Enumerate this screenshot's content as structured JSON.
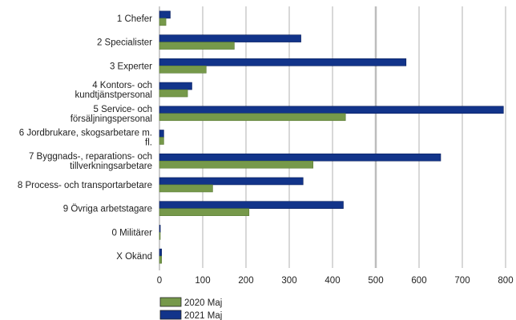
{
  "chart_data": {
    "type": "bar",
    "orientation": "horizontal",
    "categories": [
      "1 Chefer",
      "2 Specialister",
      "3 Experter",
      "4 Kontors- och kundtjänstpersonal",
      "5 Service- och försäljningspersonal",
      "6 Jordbrukare, skogsarbetare m. fl.",
      "7 Byggnads-, reparations- och tillverkningsarbetare",
      "8 Process- och transportarbetare",
      "9 Övriga arbetstagare",
      "0 Militärer",
      "X Okänd"
    ],
    "category_lines": [
      [
        "1 Chefer"
      ],
      [
        "2 Specialister"
      ],
      [
        "3 Experter"
      ],
      [
        "4 Kontors- och",
        "kundtjänstpersonal"
      ],
      [
        "5 Service- och",
        "försäljningspersonal"
      ],
      [
        "6 Jordbrukare, skogsarbetare m.",
        "fl."
      ],
      [
        "7 Byggnads-, reparations- och",
        "tillverkningsarbetare"
      ],
      [
        "8 Process- och transportarbetare"
      ],
      [
        "9 Övriga arbetstagare"
      ],
      [
        "0 Militärer"
      ],
      [
        "X Okänd"
      ]
    ],
    "series": [
      {
        "name": "2021 Maj",
        "color": "#12348a",
        "values": [
          25,
          327,
          570,
          75,
          795,
          10,
          650,
          332,
          425,
          2,
          5
        ]
      },
      {
        "name": "2020 Maj",
        "color": "#76994a",
        "values": [
          15,
          173,
          108,
          65,
          430,
          10,
          355,
          123,
          207,
          1,
          5
        ]
      }
    ],
    "xlim": [
      0,
      800
    ],
    "xticks": [
      0,
      100,
      200,
      300,
      400,
      500,
      600,
      700,
      800
    ],
    "grid": "vertical",
    "legend": {
      "placement": "bottom-left",
      "entries": [
        {
          "name": "2020 Maj",
          "color": "#76994a"
        },
        {
          "name": "2021 Maj",
          "color": "#12348a"
        }
      ]
    }
  }
}
